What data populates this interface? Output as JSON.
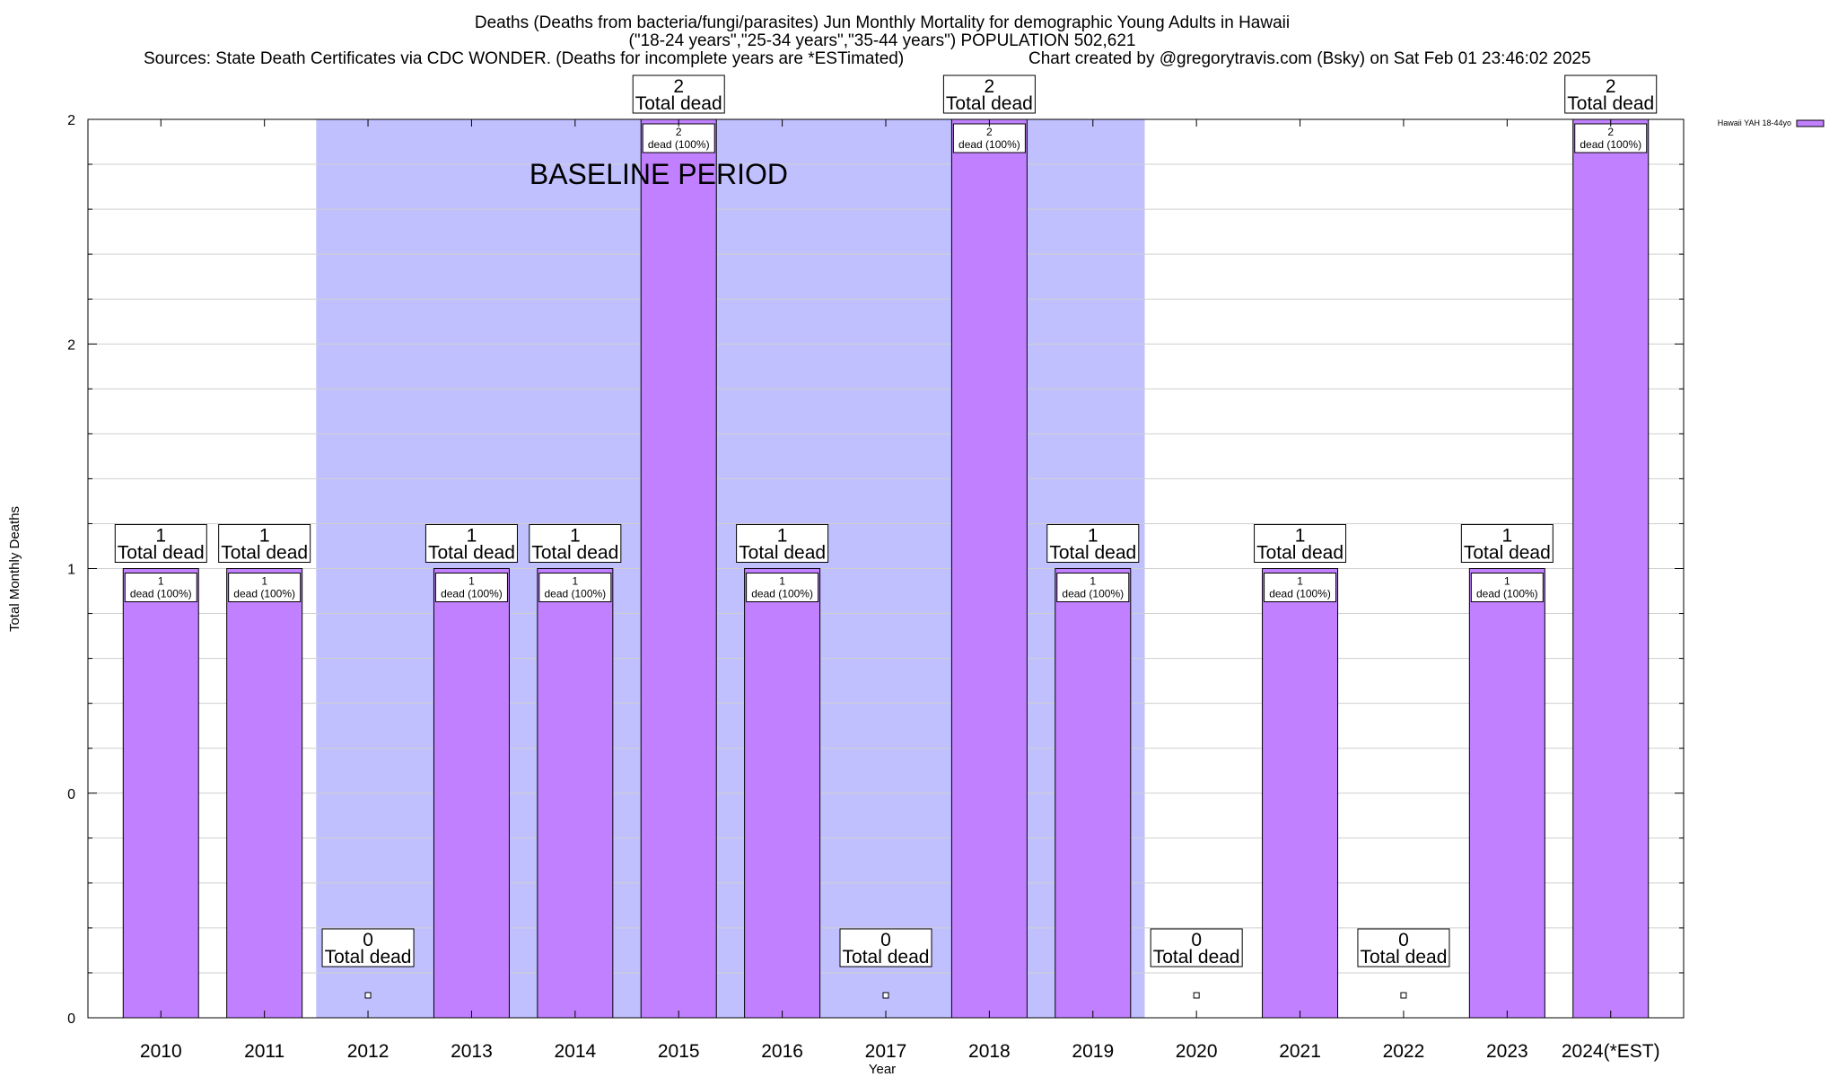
{
  "chart_data": {
    "type": "bar",
    "title_lines": [
      "Deaths (Deaths from bacteria/fungi/parasites) Jun Monthly Mortality for demographic Young Adults in Hawaii",
      "(\"18-24 years\",\"25-34 years\",\"35-44 years\") POPULATION 502,621",
      "Sources: State Death Certificates via CDC WONDER. (Deaths for incomplete years are *ESTimated)",
      "Chart created by @gregorytravis.com (Bsky) on Sat Feb 01 23:46:02 2025"
    ],
    "xlabel": "Year",
    "ylabel": "Total Monthly Deaths",
    "y_tick_labels": [
      "0",
      "0",
      "1",
      "2",
      "2"
    ],
    "y_tick_values": [
      0,
      0.5,
      1,
      1.5,
      2
    ],
    "ylim": [
      0,
      2
    ],
    "grid": true,
    "legend_position": "top-right",
    "categories": [
      "2010",
      "2011",
      "2012",
      "2013",
      "2014",
      "2015",
      "2016",
      "2017",
      "2018",
      "2019",
      "2020",
      "2021",
      "2022",
      "2023",
      "2024(*EST)"
    ],
    "series": [
      {
        "name": "Hawaii YAH 18-44yo",
        "color": "#c080ff",
        "values": [
          1,
          1,
          0,
          1,
          1,
          2,
          1,
          0,
          2,
          1,
          0,
          1,
          0,
          1,
          2
        ]
      }
    ],
    "total_label_suffix": "Total dead",
    "inner_label_suffix": "dead (100%)",
    "baseline": {
      "label": "BASELINE PERIOD",
      "start": "2012",
      "end": "2019",
      "color": "#c0c0ff"
    }
  }
}
